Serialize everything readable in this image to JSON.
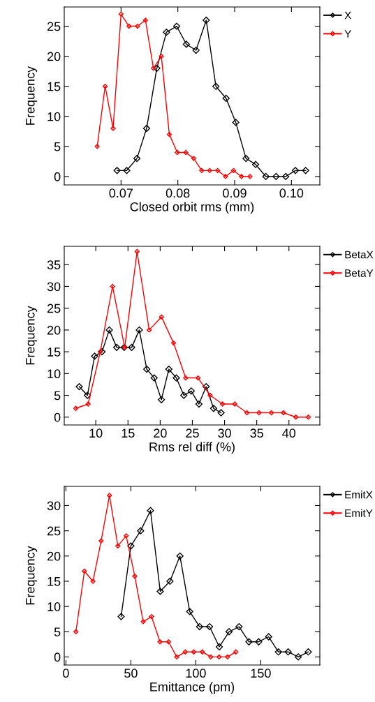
{
  "chart_data": [
    {
      "type": "line",
      "xlabel": "Closed orbit rms (mm)",
      "ylabel": "Frequency",
      "xlim": [
        0.06,
        0.105
      ],
      "ylim": [
        -1.4,
        28.2
      ],
      "xticks": [
        {
          "value": 0.07,
          "label": "0.07"
        },
        {
          "value": 0.08,
          "label": "0.08"
        },
        {
          "value": 0.09,
          "label": "0.09"
        },
        {
          "value": 0.1,
          "label": "0.10"
        }
      ],
      "yticks": [
        0,
        5,
        10,
        15,
        20,
        25
      ],
      "grid": false,
      "legend": "top right",
      "marker": "diamond",
      "line_style": "solid",
      "series": [
        {
          "name": "X",
          "color": "#000000",
          "x": [
            0.0693,
            0.071,
            0.0728,
            0.0745,
            0.0763,
            0.078,
            0.0798,
            0.0815,
            0.0832,
            0.085,
            0.0867,
            0.0885,
            0.0902,
            0.092,
            0.0937,
            0.0955,
            0.0973,
            0.099,
            0.1007,
            0.1025
          ],
          "values": [
            1,
            1,
            3,
            8,
            18,
            24,
            25,
            22,
            21,
            26,
            15,
            13,
            9,
            3,
            2,
            0,
            0,
            0,
            1,
            1
          ]
        },
        {
          "name": "Y",
          "color": "#ff0000",
          "x": [
            0.0658,
            0.0672,
            0.0686,
            0.07,
            0.0714,
            0.0729,
            0.0743,
            0.0757,
            0.0771,
            0.0785,
            0.0799,
            0.0814,
            0.0828,
            0.0842,
            0.0856,
            0.087,
            0.0884,
            0.0898,
            0.0912,
            0.0927
          ],
          "values": [
            5,
            15,
            8,
            27,
            25,
            25,
            26,
            18,
            20,
            7,
            4,
            4,
            3,
            1,
            1,
            1,
            0,
            1,
            0,
            0
          ]
        }
      ]
    },
    {
      "type": "line",
      "xlabel": "Rms rel diff (%)",
      "ylabel": "Frequency",
      "xlim": [
        5.1,
        44.8
      ],
      "ylim": [
        -1.8,
        39.2
      ],
      "xticks": [
        10,
        15,
        20,
        25,
        30,
        35,
        40
      ],
      "yticks": [
        0,
        5,
        10,
        15,
        20,
        25,
        30,
        35
      ],
      "grid": false,
      "legend": "top right",
      "marker": "diamond",
      "line_style": "solid",
      "series": [
        {
          "name": "BetaX",
          "color": "#000000",
          "x": [
            7.43,
            8.7,
            9.82,
            10.97,
            12.1,
            13.25,
            14.41,
            15.57,
            16.76,
            17.92,
            19.07,
            20.19,
            21.35,
            22.51,
            23.67,
            24.83,
            26.02,
            27.14,
            28.3,
            29.46
          ],
          "values": [
            7,
            5,
            14,
            15,
            20,
            16,
            16,
            16,
            20,
            11,
            9,
            4,
            11,
            9,
            5,
            6,
            3,
            7,
            2,
            1
          ]
        },
        {
          "name": "BetaY",
          "color": "#ff0000",
          "x": [
            6.89,
            8.81,
            10.69,
            12.6,
            14.49,
            16.41,
            18.29,
            20.2,
            22.08,
            23.96,
            25.88,
            27.76,
            29.67,
            31.59,
            33.47,
            35.35,
            37.27,
            39.15,
            41.07,
            43.02
          ],
          "values": [
            2,
            3,
            15,
            30,
            16,
            38,
            20,
            23,
            17,
            9,
            9,
            5,
            3,
            3,
            1,
            1,
            1,
            1,
            0,
            0
          ]
        }
      ]
    },
    {
      "type": "line",
      "xlabel": "Emittance (pm)",
      "ylabel": "Frequency",
      "xlim": [
        -1.3,
        195.5
      ],
      "ylim": [
        -1.6,
        33.8
      ],
      "xticks": [
        0,
        50,
        100,
        150
      ],
      "yticks": [
        0,
        5,
        10,
        15,
        20,
        25,
        30
      ],
      "grid": false,
      "legend": "top right",
      "marker": "diamond",
      "line_style": "solid",
      "series": [
        {
          "name": "EmitX",
          "color": "#000000",
          "x": [
            42.5,
            50.0,
            57.5,
            65.1,
            72.6,
            80.1,
            87.8,
            95.3,
            102.9,
            110.6,
            118.1,
            125.6,
            133.3,
            140.9,
            148.4,
            156.1,
            163.6,
            171.1,
            178.9,
            186.6
          ],
          "values": [
            8,
            22,
            25,
            29,
            13,
            15,
            20,
            9,
            6,
            6,
            2,
            5,
            6,
            3,
            3,
            4,
            1,
            1,
            0,
            1
          ]
        },
        {
          "name": "EmitY",
          "color": "#ff0000",
          "x": [
            7.7,
            14.2,
            20.8,
            27.1,
            33.5,
            40.0,
            46.4,
            53.0,
            59.5,
            65.9,
            72.4,
            79.0,
            85.3,
            91.9,
            98.4,
            105.0,
            111.5,
            117.9,
            124.4,
            130.8
          ],
          "values": [
            5,
            17,
            15,
            23,
            32,
            22,
            24,
            16,
            7,
            8,
            3,
            3,
            0,
            1,
            1,
            1,
            0,
            0,
            0,
            1
          ]
        }
      ]
    }
  ]
}
